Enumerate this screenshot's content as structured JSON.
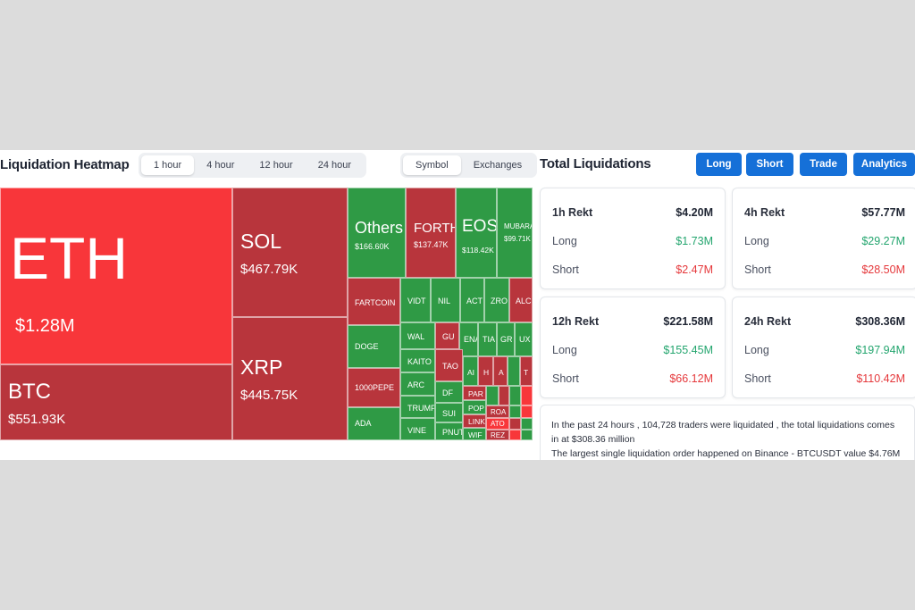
{
  "heatmap": {
    "title": "Liquidation Heatmap",
    "time_tabs": [
      "1 hour",
      "4 hour",
      "12 hour",
      "24 hour"
    ],
    "view_tabs": [
      "Symbol",
      "Exchanges"
    ],
    "tiles": [
      {
        "symbol": "ETH",
        "value": "$1.28M"
      },
      {
        "symbol": "BTC",
        "value": "$551.93K"
      },
      {
        "symbol": "SOL",
        "value": "$467.79K"
      },
      {
        "symbol": "XRP",
        "value": "$445.75K"
      },
      {
        "symbol": "Others",
        "value": "$166.60K"
      },
      {
        "symbol": "FORTH",
        "value": "$137.47K"
      },
      {
        "symbol": "EOS",
        "value": "$118.42K"
      },
      {
        "symbol": "MUBARAK",
        "value": "$99.71K"
      },
      {
        "symbol": "FARTCOIN",
        "value": ""
      },
      {
        "symbol": "DOGE",
        "value": ""
      },
      {
        "symbol": "1000PEPE",
        "value": ""
      },
      {
        "symbol": "ADA",
        "value": ""
      },
      {
        "symbol": "VIDT",
        "value": ""
      },
      {
        "symbol": "NIL",
        "value": ""
      },
      {
        "symbol": "ACT",
        "value": ""
      },
      {
        "symbol": "ZRO",
        "value": ""
      },
      {
        "symbol": "ALC",
        "value": ""
      },
      {
        "symbol": "WAL",
        "value": ""
      },
      {
        "symbol": "KAITO",
        "value": ""
      },
      {
        "symbol": "ARC",
        "value": ""
      },
      {
        "symbol": "TRUMP",
        "value": ""
      },
      {
        "symbol": "VINE",
        "value": ""
      },
      {
        "symbol": "GU",
        "value": ""
      },
      {
        "symbol": "ENA",
        "value": ""
      },
      {
        "symbol": "TIA",
        "value": ""
      },
      {
        "symbol": "GR",
        "value": ""
      },
      {
        "symbol": "UX",
        "value": ""
      },
      {
        "symbol": "TAO",
        "value": ""
      },
      {
        "symbol": "DF",
        "value": ""
      },
      {
        "symbol": "SUI",
        "value": ""
      },
      {
        "symbol": "PNUT",
        "value": ""
      },
      {
        "symbol": "PAR",
        "value": ""
      },
      {
        "symbol": "POP",
        "value": ""
      },
      {
        "symbol": "LINK",
        "value": ""
      },
      {
        "symbol": "WIF",
        "value": ""
      },
      {
        "symbol": "AI",
        "value": ""
      },
      {
        "symbol": "H",
        "value": ""
      },
      {
        "symbol": "A",
        "value": ""
      },
      {
        "symbol": "T",
        "value": ""
      },
      {
        "symbol": "ROA",
        "value": ""
      },
      {
        "symbol": "ATO",
        "value": ""
      },
      {
        "symbol": "REZ",
        "value": ""
      }
    ]
  },
  "totals": {
    "title": "Total Liquidations",
    "buttons": [
      "Long",
      "Short",
      "Trade",
      "Analytics"
    ],
    "cards": [
      {
        "label": "1h Rekt",
        "total": "$4.20M",
        "long": "$1.73M",
        "short": "$2.47M"
      },
      {
        "label": "4h Rekt",
        "total": "$57.77M",
        "long": "$29.27M",
        "short": "$28.50M"
      },
      {
        "label": "12h Rekt",
        "total": "$221.58M",
        "long": "$155.45M",
        "short": "$66.12M"
      },
      {
        "label": "24h Rekt",
        "total": "$308.36M",
        "long": "$197.94M",
        "short": "$110.42M"
      }
    ],
    "long_label": "Long",
    "short_label": "Short",
    "summary_line1": "In the past 24 hours , 104,728 traders were liquidated , the total liquidations comes in at $308.36 million",
    "summary_line2": "The largest single liquidation order happened on Binance - BTCUSDT value $4.76M"
  },
  "colors": {
    "bright_red": "#f8363a",
    "dark_red": "#b8353c",
    "green": "#2f9a45",
    "accent_blue": "#1570d8",
    "positive_text": "#23a56e",
    "negative_text": "#e5383b"
  }
}
